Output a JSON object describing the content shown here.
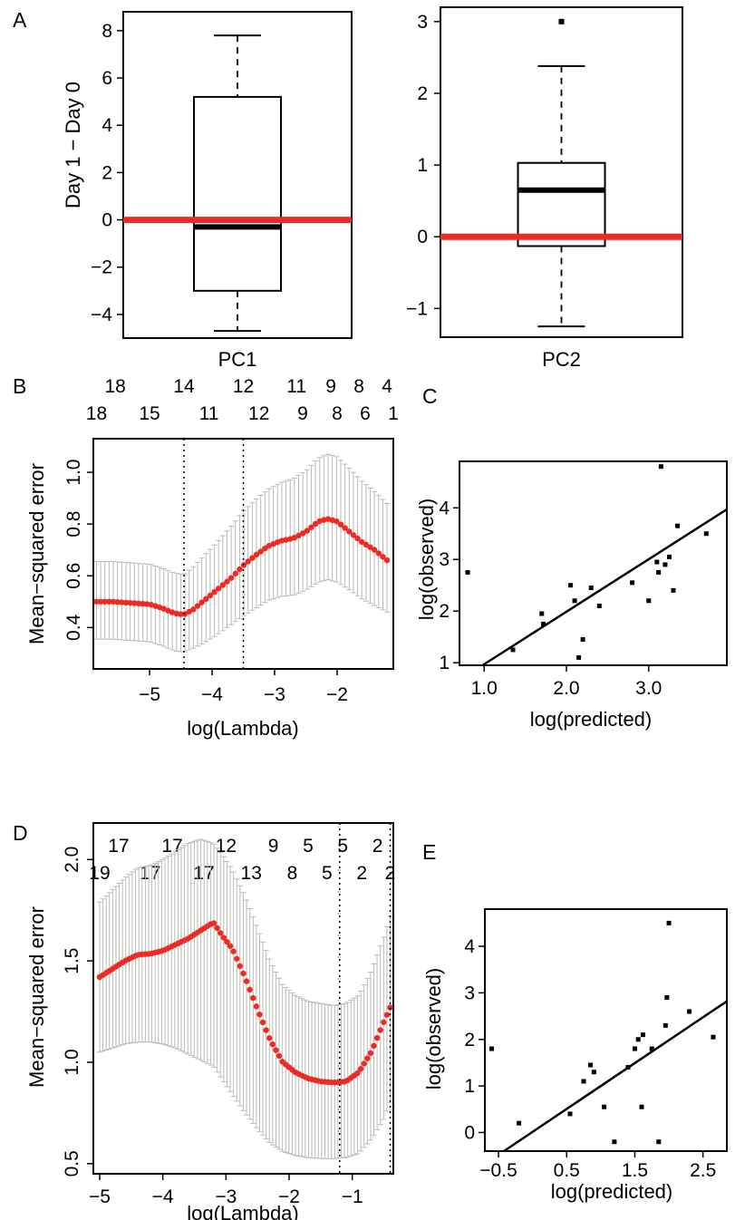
{
  "colors": {
    "zero_line": "#ee2a24",
    "cv_curve": "#ee2a24",
    "error_bar": "#b8bcb4",
    "axis": "#000000",
    "fit_line": "#000000"
  },
  "chart_data": [
    {
      "panel": "A",
      "type": "box",
      "subpanel": "PC1",
      "xlabel": "PC1",
      "ylabel": "Day 1 − Day 0",
      "ylim": [
        -5.0,
        8.8
      ],
      "yticks": [
        -4,
        -2,
        0,
        2,
        4,
        6,
        8
      ],
      "ytick_labels": [
        "−4",
        "−2",
        "0",
        "2",
        "4",
        "6",
        "8"
      ],
      "box": {
        "whisker_low": -4.7,
        "q1": -3.0,
        "median": -0.3,
        "q3": 5.2,
        "whisker_high": 7.8
      },
      "outliers": [],
      "reference_line": 0
    },
    {
      "panel": "A",
      "type": "box",
      "subpanel": "PC2",
      "xlabel": "PC2",
      "ylabel": "",
      "ylim": [
        -1.4,
        3.2
      ],
      "yticks": [
        -1,
        0,
        1,
        2,
        3
      ],
      "ytick_labels": [
        "−1",
        "0",
        "1",
        "2",
        "3"
      ],
      "box": {
        "whisker_low": -1.25,
        "q1": -0.13,
        "median": 0.65,
        "q3": 1.03,
        "whisker_high": 2.38
      },
      "outliers": [
        3.0
      ],
      "reference_line": 0
    },
    {
      "panel": "B",
      "type": "line",
      "xlabel": "log(Lambda)",
      "ylabel": "Mean−squared error",
      "xlim": [
        -5.9,
        -1.1
      ],
      "ylim": [
        0.24,
        1.13
      ],
      "xticks": [
        -5,
        -4,
        -3,
        -2
      ],
      "xtick_labels": [
        "−5",
        "−4",
        "−3",
        "−2"
      ],
      "yticks": [
        0.4,
        0.6,
        0.8,
        1.0
      ],
      "ytick_labels": [
        "0.4",
        "0.6",
        "0.8",
        "1.0"
      ],
      "x": [
        -5.85,
        -5.6,
        -5.3,
        -5.0,
        -4.8,
        -4.6,
        -4.45,
        -4.3,
        -4.1,
        -3.9,
        -3.7,
        -3.5,
        -3.3,
        -3.1,
        -2.9,
        -2.7,
        -2.5,
        -2.3,
        -2.15,
        -2.0,
        -1.8,
        -1.6,
        -1.4,
        -1.2
      ],
      "y": [
        0.5,
        0.5,
        0.495,
        0.49,
        0.475,
        0.455,
        0.45,
        0.47,
        0.51,
        0.55,
        0.59,
        0.64,
        0.68,
        0.715,
        0.735,
        0.745,
        0.77,
        0.81,
        0.82,
        0.81,
        0.77,
        0.73,
        0.7,
        0.66
      ],
      "y_lower": [
        0.355,
        0.355,
        0.35,
        0.345,
        0.33,
        0.31,
        0.305,
        0.32,
        0.345,
        0.375,
        0.41,
        0.445,
        0.475,
        0.505,
        0.52,
        0.525,
        0.545,
        0.575,
        0.585,
        0.575,
        0.545,
        0.51,
        0.485,
        0.46
      ],
      "y_upper": [
        0.655,
        0.655,
        0.65,
        0.645,
        0.63,
        0.61,
        0.605,
        0.635,
        0.685,
        0.735,
        0.79,
        0.85,
        0.895,
        0.935,
        0.96,
        0.975,
        1.005,
        1.055,
        1.07,
        1.06,
        1.015,
        0.965,
        0.925,
        0.88
      ],
      "vlines": [
        -4.45,
        -3.5
      ],
      "top_counts_row1": {
        "x": [
          -5.55,
          -4.45,
          -3.5,
          -2.65,
          -2.1,
          -1.65,
          -1.2
        ],
        "labels": [
          "18",
          "14",
          "12",
          "11",
          "9",
          "8",
          "4"
        ]
      },
      "top_counts_row2": {
        "x": [
          -5.85,
          -5.0,
          -4.05,
          -3.25,
          -2.55,
          -2.0,
          -1.55,
          -1.1
        ],
        "labels": [
          "18",
          "15",
          "11",
          "12",
          "9",
          "8",
          "6",
          "1"
        ]
      }
    },
    {
      "panel": "C",
      "type": "scatter",
      "xlabel": "log(predicted)",
      "ylabel": "log(observed)",
      "xlim": [
        0.7,
        3.95
      ],
      "ylim": [
        0.95,
        4.9
      ],
      "xticks": [
        1.0,
        2.0,
        3.0
      ],
      "xtick_labels": [
        "1.0",
        "2.0",
        "3.0"
      ],
      "yticks": [
        1,
        2,
        3,
        4
      ],
      "ytick_labels": [
        "1",
        "2",
        "3",
        "4"
      ],
      "points": [
        [
          0.8,
          2.75
        ],
        [
          1.35,
          1.25
        ],
        [
          1.7,
          1.95
        ],
        [
          1.72,
          1.75
        ],
        [
          2.05,
          2.5
        ],
        [
          2.1,
          2.2
        ],
        [
          2.15,
          1.1
        ],
        [
          2.2,
          1.45
        ],
        [
          2.3,
          2.45
        ],
        [
          2.4,
          2.1
        ],
        [
          2.8,
          2.55
        ],
        [
          3.0,
          2.2
        ],
        [
          3.1,
          2.95
        ],
        [
          3.12,
          2.75
        ],
        [
          3.15,
          4.8
        ],
        [
          3.2,
          2.9
        ],
        [
          3.25,
          3.05
        ],
        [
          3.3,
          2.4
        ],
        [
          3.35,
          3.65
        ],
        [
          3.7,
          3.5
        ]
      ],
      "fit_line": {
        "x": [
          0.98,
          3.95
        ],
        "y": [
          0.95,
          3.97
        ]
      }
    },
    {
      "panel": "D",
      "type": "line",
      "xlabel": "log(Lambda)",
      "ylabel": "Mean−squared error",
      "xlim": [
        -5.1,
        -0.35
      ],
      "ylim": [
        0.45,
        2.18
      ],
      "xticks": [
        -5,
        -4,
        -3,
        -2,
        -1
      ],
      "xtick_labels": [
        "−5",
        "−4",
        "−3",
        "−2",
        "−1"
      ],
      "yticks": [
        0.5,
        1.0,
        1.5,
        2.0
      ],
      "ytick_labels": [
        "0.5",
        "1.0",
        "1.5",
        "2.0"
      ],
      "x": [
        -5.0,
        -4.8,
        -4.6,
        -4.4,
        -4.2,
        -4.0,
        -3.8,
        -3.6,
        -3.4,
        -3.2,
        -3.05,
        -2.9,
        -2.7,
        -2.5,
        -2.3,
        -2.1,
        -1.9,
        -1.7,
        -1.5,
        -1.3,
        -1.1,
        -0.9,
        -0.7,
        -0.5,
        -0.4
      ],
      "y": [
        1.42,
        1.46,
        1.5,
        1.53,
        1.535,
        1.55,
        1.58,
        1.61,
        1.65,
        1.69,
        1.62,
        1.56,
        1.42,
        1.26,
        1.11,
        1.0,
        0.95,
        0.92,
        0.905,
        0.9,
        0.905,
        0.95,
        1.05,
        1.2,
        1.27
      ],
      "y_lower": [
        1.05,
        1.07,
        1.09,
        1.1,
        1.1,
        1.09,
        1.07,
        1.04,
        1.01,
        0.98,
        0.91,
        0.84,
        0.75,
        0.67,
        0.6,
        0.56,
        0.54,
        0.53,
        0.525,
        0.525,
        0.53,
        0.55,
        0.62,
        0.72,
        0.8
      ],
      "y_upper": [
        1.79,
        1.85,
        1.91,
        1.96,
        1.97,
        2.0,
        2.04,
        2.08,
        2.1,
        2.08,
        2.02,
        1.95,
        1.82,
        1.66,
        1.5,
        1.38,
        1.33,
        1.3,
        1.29,
        1.28,
        1.29,
        1.33,
        1.45,
        1.62,
        1.72
      ],
      "vlines": [
        -1.2,
        -0.4
      ],
      "top_counts_row1": {
        "x": [
          -4.7,
          -3.85,
          -3.0,
          -2.25,
          -1.7,
          -1.15,
          -0.6
        ],
        "labels": [
          "17",
          "17",
          "12",
          "9",
          "5",
          "5",
          "2"
        ]
      },
      "top_counts_row2": {
        "x": [
          -5.0,
          -4.2,
          -3.35,
          -2.6,
          -1.95,
          -1.4,
          -0.85,
          -0.4
        ],
        "labels": [
          "19",
          "17",
          "17",
          "13",
          "8",
          "5",
          "2",
          "2"
        ]
      }
    },
    {
      "panel": "E",
      "type": "scatter",
      "xlabel": "log(predicted)",
      "ylabel": "log(observed)",
      "xlim": [
        -0.7,
        2.85
      ],
      "ylim": [
        -0.4,
        4.8
      ],
      "xticks": [
        -0.5,
        0.5,
        1.5,
        2.5
      ],
      "xtick_labels": [
        "−0.5",
        "0.5",
        "1.5",
        "2.5"
      ],
      "yticks": [
        0,
        1,
        2,
        3,
        4
      ],
      "ytick_labels": [
        "0",
        "1",
        "2",
        "3",
        "4"
      ],
      "points": [
        [
          -0.6,
          1.8
        ],
        [
          -0.2,
          0.2
        ],
        [
          0.55,
          0.4
        ],
        [
          0.75,
          1.1
        ],
        [
          0.85,
          1.45
        ],
        [
          0.9,
          1.3
        ],
        [
          1.05,
          0.55
        ],
        [
          1.2,
          -0.2
        ],
        [
          1.4,
          1.4
        ],
        [
          1.5,
          1.8
        ],
        [
          1.55,
          2.0
        ],
        [
          1.6,
          0.55
        ],
        [
          1.62,
          2.1
        ],
        [
          1.75,
          1.8
        ],
        [
          1.85,
          -0.2
        ],
        [
          1.95,
          2.3
        ],
        [
          1.97,
          2.9
        ],
        [
          2.0,
          4.5
        ],
        [
          2.3,
          2.6
        ],
        [
          2.65,
          2.05
        ]
      ],
      "fit_line": {
        "x": [
          -0.42,
          2.85
        ],
        "y": [
          -0.4,
          2.82
        ]
      }
    }
  ]
}
